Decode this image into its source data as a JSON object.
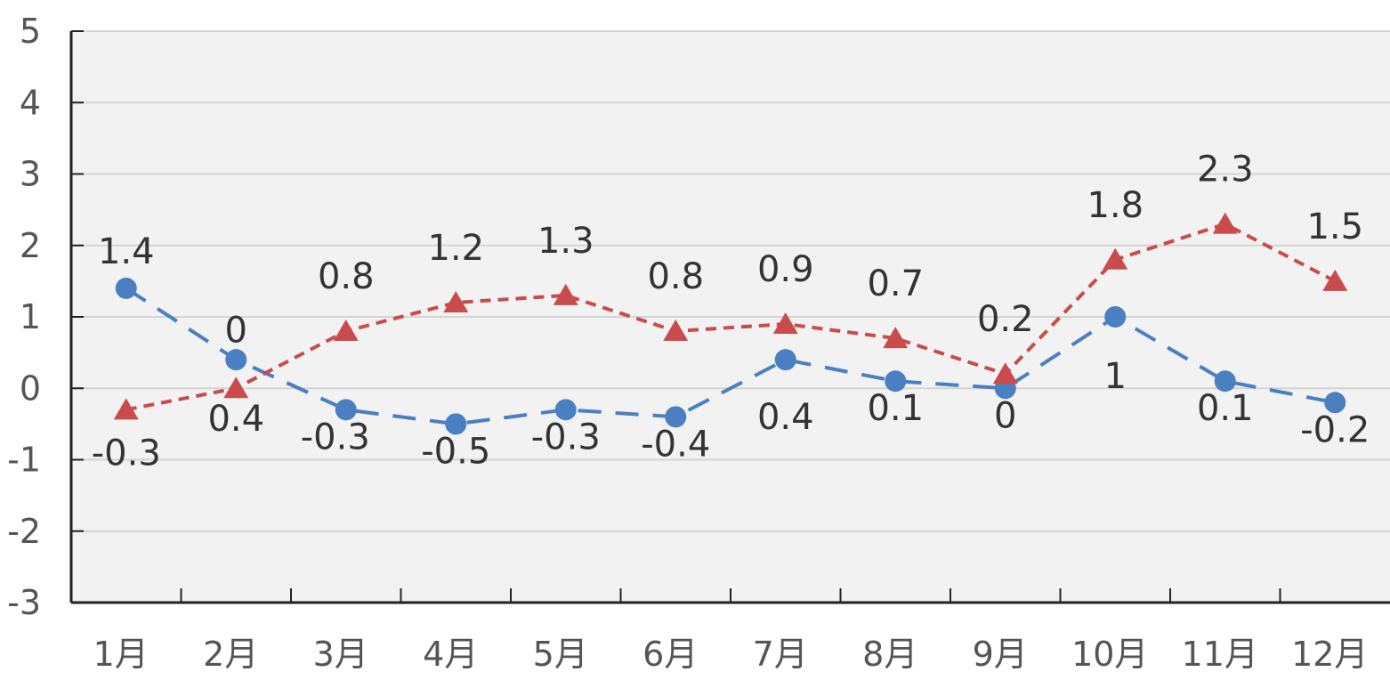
{
  "chart_data": {
    "type": "line",
    "title": "",
    "xlabel": "",
    "ylabel": "",
    "categories": [
      "1月",
      "2月",
      "3月",
      "4月",
      "5月",
      "6月",
      "7月",
      "8月",
      "9月",
      "10月",
      "11月",
      "12月"
    ],
    "ylim": [
      -3,
      5
    ],
    "yticks": [
      -3,
      -2,
      -1,
      0,
      1,
      2,
      3,
      4,
      5
    ],
    "grid": true,
    "legend": "none",
    "series": [
      {
        "marker": "circle",
        "line_style": "dashed",
        "color": "#4a7fc1",
        "values": [
          1.4,
          0.4,
          -0.3,
          -0.5,
          -0.3,
          -0.4,
          0.4,
          0.1,
          0,
          1,
          0.1,
          -0.2
        ],
        "labels": [
          "1.4",
          "0.4",
          "-0.3",
          "-0.5",
          "-0.3",
          "-0.4",
          "0.4",
          "0.1",
          "0",
          "1",
          "0.1",
          "-0.2"
        ]
      },
      {
        "marker": "triangle",
        "line_style": "dotted",
        "color": "#c94b4b",
        "values": [
          -0.3,
          0,
          0.8,
          1.2,
          1.3,
          0.8,
          0.9,
          0.7,
          0.2,
          1.8,
          2.3,
          1.5
        ],
        "labels": [
          "-0.3",
          "0",
          "0.8",
          "1.2",
          "1.3",
          "0.8",
          "0.9",
          "0.7",
          "0.2",
          "1.8",
          "2.3",
          "1.5"
        ]
      }
    ]
  }
}
